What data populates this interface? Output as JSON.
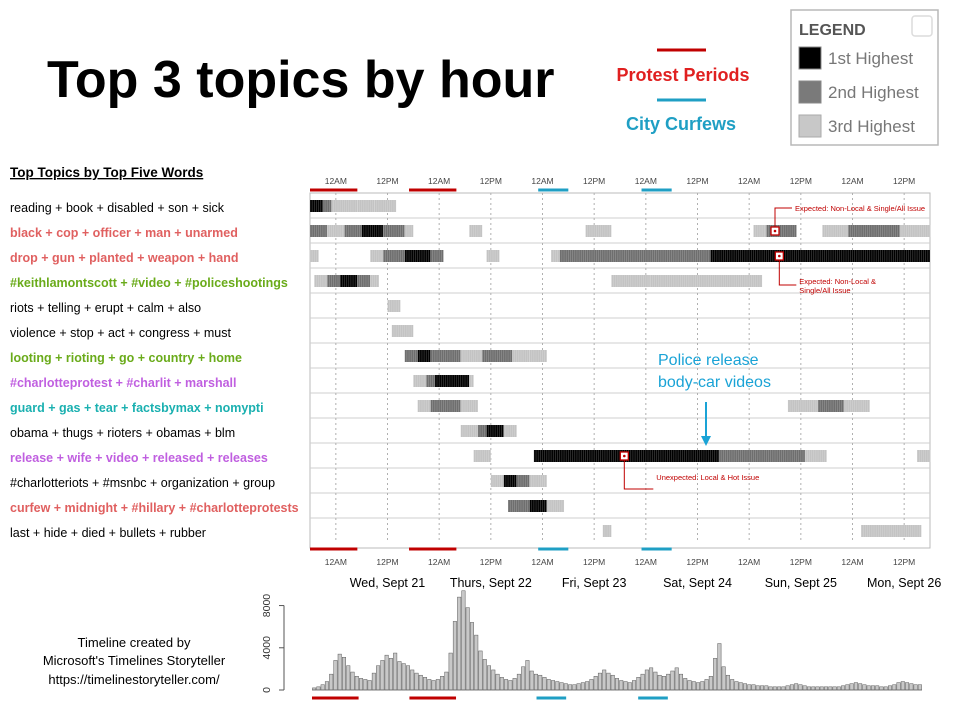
{
  "title": "Top 3 topics by hour",
  "key": {
    "protest_label": "Protest Periods",
    "curfew_label": "City Curfews",
    "protest_color": "#c00000",
    "curfew_color": "#1f9fc4"
  },
  "legend": {
    "title": "LEGEND",
    "items": [
      {
        "label": "1st Highest",
        "color": "#000000"
      },
      {
        "label": "2nd Highest",
        "color": "#7a7a7a"
      },
      {
        "label": "3rd Highest",
        "color": "#c8c8c8"
      }
    ]
  },
  "topics_heading": "Top Topics by Top Five Words",
  "credit": [
    "Timeline created by",
    "Microsoft's Timelines Storyteller",
    "https://timelinestoryteller.com/"
  ],
  "annotation_main": [
    "Police release",
    "body-car videos"
  ],
  "chart_data": [
    {
      "type": "heatmap",
      "tick_labels": [
        "12AM",
        "12PM",
        "12AM",
        "12PM",
        "12AM",
        "12PM",
        "12AM",
        "12PM",
        "12AM",
        "12PM",
        "12AM",
        "12PM"
      ],
      "day_labels": [
        "Wed, Sept 21",
        "Thurs, Sept 22",
        "Fri, Sept 23",
        "Sat, Sept 24",
        "Sun, Sept 25",
        "Mon, Sept 26"
      ],
      "x_hours": [
        0,
        144
      ],
      "protest_periods": [
        [
          0,
          11
        ],
        [
          23,
          34
        ]
      ],
      "curfew_periods": [
        [
          53,
          60
        ],
        [
          77,
          84
        ]
      ],
      "callouts": [
        {
          "row": 1,
          "hour": 108,
          "text": "Expected: Non-Local & Single/All Issue"
        },
        {
          "row": 2,
          "hour": 109,
          "text": "Expected: Non-Local & Single/All Issue"
        },
        {
          "row": 10,
          "hour": 73,
          "text": "Unexpected: Local & Hot Issue"
        }
      ],
      "rows": [
        {
          "topic": "reading + book + disabled + son + sick",
          "color": "#000000",
          "segments": [
            [
              0,
              3,
              1
            ],
            [
              3,
              5,
              2
            ],
            [
              5,
              11,
              3
            ],
            [
              11,
              15,
              3
            ],
            [
              15,
              20,
              3
            ]
          ]
        },
        {
          "topic": "black + cop + officer + man + unarmed",
          "color": "#e06060",
          "segments": [
            [
              0,
              4,
              2
            ],
            [
              4,
              8,
              3
            ],
            [
              8,
              12,
              2
            ],
            [
              12,
              17,
              1
            ],
            [
              17,
              22,
              2
            ],
            [
              22,
              24,
              3
            ],
            [
              37,
              40,
              3
            ],
            [
              64,
              70,
              3
            ],
            [
              103,
              106,
              3
            ],
            [
              106,
              113,
              2
            ],
            [
              119,
              125,
              3
            ],
            [
              125,
              137,
              2
            ],
            [
              137,
              144,
              3
            ]
          ]
        },
        {
          "topic": "drop + gun + planted + weapon + hand",
          "color": "#e06060",
          "segments": [
            [
              0,
              2,
              3
            ],
            [
              14,
              17,
              3
            ],
            [
              17,
              22,
              2
            ],
            [
              22,
              28,
              1
            ],
            [
              28,
              31,
              2
            ],
            [
              41,
              44,
              3
            ],
            [
              56,
              58,
              3
            ],
            [
              58,
              93,
              2
            ],
            [
              93,
              144,
              1
            ]
          ]
        },
        {
          "topic": "#keithlamontscott + #video + #policeshootings",
          "color": "#6aab1a",
          "segments": [
            [
              1,
              4,
              3
            ],
            [
              4,
              7,
              2
            ],
            [
              7,
              11,
              1
            ],
            [
              11,
              14,
              2
            ],
            [
              14,
              16,
              3
            ],
            [
              70,
              79,
              3
            ],
            [
              79,
              105,
              3
            ]
          ]
        },
        {
          "topic": "riots + telling + erupt + calm + also",
          "color": "#000000",
          "segments": [
            [
              18,
              21,
              3
            ]
          ]
        },
        {
          "topic": "violence + stop + act + congress + must",
          "color": "#000000",
          "segments": [
            [
              19,
              24,
              3
            ]
          ]
        },
        {
          "topic": "looting + rioting + go + country + home",
          "color": "#6aab1a",
          "segments": [
            [
              22,
              25,
              2
            ],
            [
              25,
              28,
              1
            ],
            [
              28,
              35,
              2
            ],
            [
              35,
              40,
              3
            ],
            [
              40,
              47,
              2
            ],
            [
              47,
              51,
              3
            ],
            [
              51,
              55,
              3
            ]
          ]
        },
        {
          "topic": "#charlotteprotest + #charlit + marshall",
          "color": "#c05fe0",
          "segments": [
            [
              24,
              27,
              3
            ],
            [
              27,
              29,
              2
            ],
            [
              29,
              37,
              1
            ],
            [
              37,
              38,
              3
            ]
          ]
        },
        {
          "topic": "guard + gas + tear + factsbymax + nomypti",
          "color": "#1ab0b0",
          "segments": [
            [
              25,
              28,
              3
            ],
            [
              28,
              35,
              2
            ],
            [
              35,
              39,
              3
            ],
            [
              111,
              118,
              3
            ],
            [
              118,
              124,
              2
            ],
            [
              124,
              130,
              3
            ]
          ]
        },
        {
          "topic": "obama + thugs + rioters + obamas + blm",
          "color": "#000000",
          "segments": [
            [
              35,
              39,
              3
            ],
            [
              39,
              41,
              2
            ],
            [
              41,
              45,
              1
            ],
            [
              45,
              48,
              3
            ]
          ]
        },
        {
          "topic": "release + wife + video + released + releases",
          "color": "#c05fe0",
          "segments": [
            [
              38,
              42,
              3
            ],
            [
              52,
              95,
              1
            ],
            [
              95,
              115,
              2
            ],
            [
              115,
              120,
              3
            ],
            [
              141,
              144,
              3
            ]
          ]
        },
        {
          "topic": "#charlotteriots + #msnbc + organization + group",
          "color": "#000000",
          "segments": [
            [
              42,
              45,
              3
            ],
            [
              45,
              48,
              1
            ],
            [
              48,
              51,
              2
            ],
            [
              51,
              55,
              3
            ]
          ]
        },
        {
          "topic": "curfew + midnight + #hillary + #charlotteprotests",
          "color": "#e06060",
          "segments": [
            [
              46,
              51,
              2
            ],
            [
              51,
              55,
              1
            ],
            [
              55,
              59,
              3
            ]
          ]
        },
        {
          "topic": "last + hide + died + bullets + rubber",
          "color": "#000000",
          "segments": [
            [
              68,
              70,
              3
            ],
            [
              128,
              142,
              3
            ]
          ]
        }
      ]
    },
    {
      "type": "bar",
      "ylim": [
        0,
        9000
      ],
      "yticks": [
        0,
        4000,
        8000
      ],
      "values": [
        200,
        300,
        500,
        800,
        1500,
        2800,
        3400,
        3100,
        2300,
        1700,
        1300,
        1100,
        1000,
        900,
        1600,
        2300,
        2800,
        3300,
        3000,
        3500,
        2700,
        2500,
        2300,
        1900,
        1600,
        1400,
        1200,
        1000,
        900,
        1000,
        1300,
        1700,
        3500,
        6500,
        8800,
        9400,
        7800,
        6400,
        5200,
        3700,
        2900,
        2300,
        1900,
        1500,
        1200,
        1000,
        900,
        1100,
        1500,
        2200,
        2800,
        1800,
        1500,
        1400,
        1200,
        1000,
        900,
        800,
        700,
        600,
        500,
        500,
        600,
        700,
        800,
        1000,
        1300,
        1600,
        1900,
        1600,
        1400,
        1100,
        900,
        800,
        700,
        900,
        1200,
        1500,
        1900,
        2100,
        1700,
        1400,
        1300,
        1500,
        1800,
        2100,
        1500,
        1100,
        900,
        800,
        700,
        800,
        1000,
        1300,
        3000,
        4400,
        2200,
        1400,
        1000,
        800,
        700,
        600,
        500,
        500,
        400,
        400,
        400,
        300,
        300,
        300,
        300,
        400,
        500,
        600,
        500,
        400,
        300,
        300,
        300,
        300,
        300,
        300,
        300,
        300,
        400,
        500,
        600,
        700,
        600,
        500,
        400,
        400,
        400,
        300,
        300,
        400,
        500,
        700,
        800,
        700,
        600,
        500,
        500
      ]
    }
  ]
}
